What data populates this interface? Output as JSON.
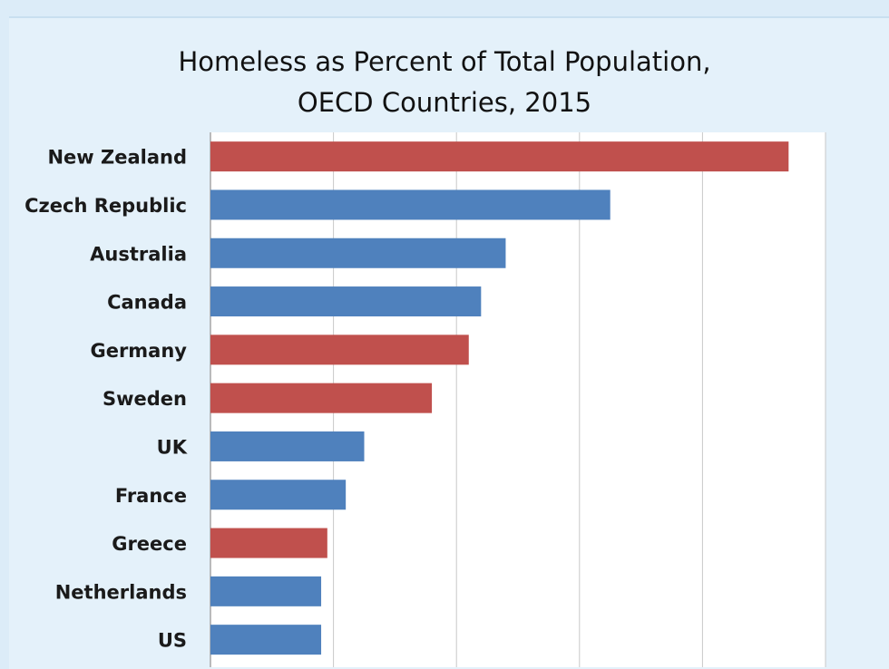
{
  "chart_data": {
    "type": "bar",
    "orientation": "horizontal",
    "title": "Homeless as Percent of Total Population, OECD Countries, 2015",
    "title_lines": [
      "Homeless as Percent of Total Population,",
      "OECD Countries, 2015"
    ],
    "categories": [
      "New Zealand",
      "Czech Republic",
      "Australia",
      "Canada",
      "Germany",
      "Sweden",
      "UK",
      "France",
      "Greece",
      "Netherlands",
      "US"
    ],
    "values": [
      0.94,
      0.65,
      0.48,
      0.44,
      0.42,
      0.36,
      0.25,
      0.22,
      0.19,
      0.18,
      0.18
    ],
    "xlim": [
      0,
      1.0
    ],
    "grid": true,
    "bar_colors": [
      "#c0504d",
      "#4f81bd",
      "#4f81bd",
      "#4f81bd",
      "#c0504d",
      "#c0504d",
      "#4f81bd",
      "#4f81bd",
      "#c0504d",
      "#4f81bd",
      "#4f81bd"
    ],
    "colors": {
      "red": "#c0504d",
      "blue": "#4f81bd"
    },
    "xlabel": "",
    "ylabel": "",
    "legend": "none"
  }
}
